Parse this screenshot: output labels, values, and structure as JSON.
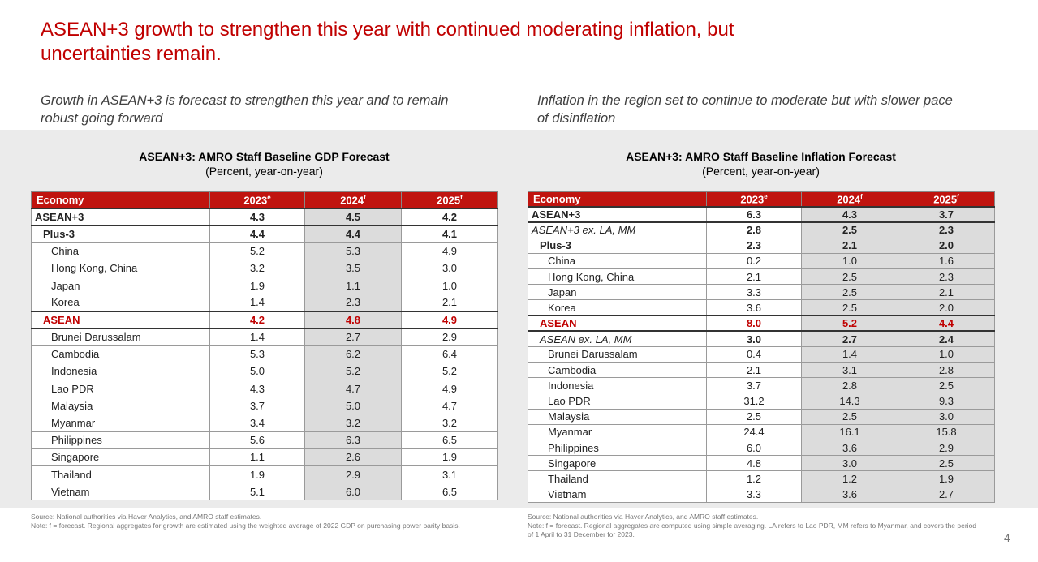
{
  "title": "ASEAN+3 growth to strengthen this year with continued moderating inflation, but uncertainties remain.",
  "panels": [
    {
      "subtitle": "Growth in ASEAN+3 is forecast to strengthen this year and to remain robust going forward",
      "table_title": "ASEAN+3: AMRO Staff Baseline GDP Forecast",
      "table_subtitle": "(Percent, year-on-year)",
      "columns": [
        {
          "label": "Economy"
        },
        {
          "label": "2023",
          "sup": "e"
        },
        {
          "label": "2024",
          "sup": "f"
        },
        {
          "label": "2025",
          "sup": "f"
        }
      ],
      "rows": [
        {
          "cells": [
            "ASEAN+3",
            "4.3",
            "4.5",
            "4.2"
          ],
          "style": "aggregate"
        },
        {
          "cells": [
            "Plus-3",
            "4.4",
            "4.4",
            "4.1"
          ],
          "style": "subgroup"
        },
        {
          "cells": [
            "China",
            "5.2",
            "5.3",
            "4.9"
          ]
        },
        {
          "cells": [
            "Hong Kong, China",
            "3.2",
            "3.5",
            "3.0"
          ]
        },
        {
          "cells": [
            "Japan",
            "1.9",
            "1.1",
            "1.0"
          ]
        },
        {
          "cells": [
            "Korea",
            "1.4",
            "2.3",
            "2.1"
          ]
        },
        {
          "cells": [
            "ASEAN",
            "4.2",
            "4.8",
            "4.9"
          ],
          "style": "red"
        },
        {
          "cells": [
            "Brunei Darussalam",
            "1.4",
            "2.7",
            "2.9"
          ]
        },
        {
          "cells": [
            "Cambodia",
            "5.3",
            "6.2",
            "6.4"
          ]
        },
        {
          "cells": [
            "Indonesia",
            "5.0",
            "5.2",
            "5.2"
          ]
        },
        {
          "cells": [
            "Lao PDR",
            "4.3",
            "4.7",
            "4.9"
          ]
        },
        {
          "cells": [
            "Malaysia",
            "3.7",
            "5.0",
            "4.7"
          ]
        },
        {
          "cells": [
            "Myanmar",
            "3.4",
            "3.2",
            "3.2"
          ]
        },
        {
          "cells": [
            "Philippines",
            "5.6",
            "6.3",
            "6.5"
          ]
        },
        {
          "cells": [
            "Singapore",
            "1.1",
            "2.6",
            "1.9"
          ]
        },
        {
          "cells": [
            "Thailand",
            "1.9",
            "2.9",
            "3.1"
          ]
        },
        {
          "cells": [
            "Vietnam",
            "5.1",
            "6.0",
            "6.5"
          ]
        }
      ],
      "source": "Source: National authorities via Haver Analytics, and AMRO staff estimates.",
      "note": "Note: f = forecast. Regional aggregates for growth are estimated using the weighted average of 2022 GDP on purchasing power parity basis."
    },
    {
      "subtitle": "Inflation in the region set to continue to moderate but with slower pace of disinflation",
      "table_title": "ASEAN+3: AMRO Staff Baseline Inflation Forecast",
      "table_subtitle": "(Percent, year-on-year)",
      "columns": [
        {
          "label": "Economy"
        },
        {
          "label": "2023",
          "sup": "e"
        },
        {
          "label": "2024",
          "sup": "f"
        },
        {
          "label": "2025",
          "sup": "f"
        }
      ],
      "rows": [
        {
          "cells": [
            "ASEAN+3",
            "6.3",
            "4.3",
            "3.7"
          ],
          "style": "aggregate"
        },
        {
          "cells": [
            "ASEAN+3 ex. LA, MM",
            "2.8",
            "2.5",
            "2.3"
          ],
          "style": "italic"
        },
        {
          "cells": [
            "Plus-3",
            "2.3",
            "2.1",
            "2.0"
          ],
          "style": "subgroup"
        },
        {
          "cells": [
            "China",
            "0.2",
            "1.0",
            "1.6"
          ]
        },
        {
          "cells": [
            "Hong Kong, China",
            "2.1",
            "2.5",
            "2.3"
          ]
        },
        {
          "cells": [
            "Japan",
            "3.3",
            "2.5",
            "2.1"
          ]
        },
        {
          "cells": [
            "Korea",
            "3.6",
            "2.5",
            "2.0"
          ]
        },
        {
          "cells": [
            "ASEAN",
            "8.0",
            "5.2",
            "4.4"
          ],
          "style": "red"
        },
        {
          "cells": [
            "ASEAN ex. LA, MM",
            "3.0",
            "2.7",
            "2.4"
          ],
          "style": "italic-sub"
        },
        {
          "cells": [
            "Brunei Darussalam",
            "0.4",
            "1.4",
            "1.0"
          ]
        },
        {
          "cells": [
            "Cambodia",
            "2.1",
            "3.1",
            "2.8"
          ]
        },
        {
          "cells": [
            "Indonesia",
            "3.7",
            "2.8",
            "2.5"
          ]
        },
        {
          "cells": [
            "Lao PDR",
            "31.2",
            "14.3",
            "9.3"
          ]
        },
        {
          "cells": [
            "Malaysia",
            "2.5",
            "2.5",
            "3.0"
          ]
        },
        {
          "cells": [
            "Myanmar",
            "24.4",
            "16.1",
            "15.8"
          ]
        },
        {
          "cells": [
            "Philippines",
            "6.0",
            "3.6",
            "2.9"
          ]
        },
        {
          "cells": [
            "Singapore",
            "4.8",
            "3.0",
            "2.5"
          ]
        },
        {
          "cells": [
            "Thailand",
            "1.2",
            "1.2",
            "1.9"
          ]
        },
        {
          "cells": [
            "Vietnam",
            "3.3",
            "3.6",
            "2.7"
          ]
        }
      ],
      "source": "Source: National authorities via Haver Analytics, and AMRO staff estimates.",
      "note": "Note: f = forecast. Regional aggregates are computed using simple averaging. LA refers to Lao PDR, MM refers to Myanmar, and covers the period of 1 April to 31 December for 2023."
    }
  ],
  "page_number": "4"
}
